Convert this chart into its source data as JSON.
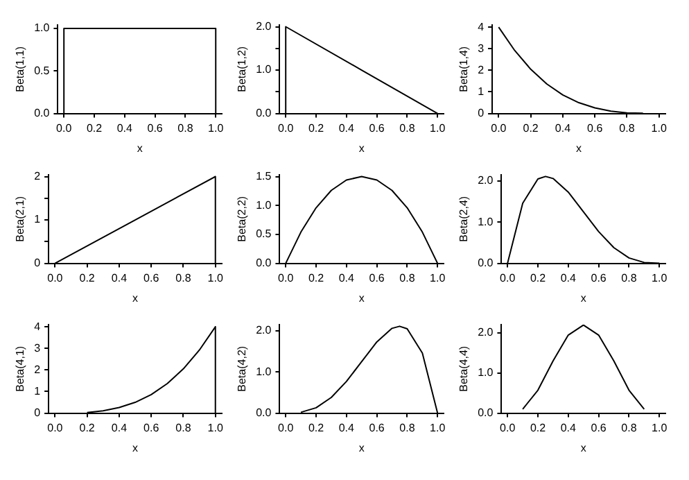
{
  "chart_data": [
    {
      "type": "line",
      "xlabel": "x",
      "ylabel": "Beta(1,1)",
      "xlim": [
        -0.04,
        1.04
      ],
      "xticks": [
        {
          "value": 0,
          "label": "0.0"
        },
        {
          "value": 0.2,
          "label": "0.2"
        },
        {
          "value": 0.4,
          "label": "0.4"
        },
        {
          "value": 0.6,
          "label": "0.6"
        },
        {
          "value": 0.8,
          "label": "0.8"
        },
        {
          "value": 1,
          "label": "1.0"
        }
      ],
      "ylim": [
        0,
        1.04
      ],
      "yticks": [
        {
          "value": 0,
          "label": "0.0"
        },
        {
          "value": 0.5,
          "label": "0.5"
        },
        {
          "value": 1,
          "label": "1.0"
        }
      ],
      "marker": "none",
      "series": [
        {
          "color": "#000000",
          "x": [
            0,
            0,
            0.5,
            1,
            1
          ],
          "values": [
            0,
            1,
            1,
            1,
            0
          ]
        }
      ]
    },
    {
      "type": "line",
      "xlabel": "x",
      "ylabel": "Beta(1,2)",
      "xlim": [
        -0.04,
        1.04
      ],
      "xticks": [
        {
          "value": 0,
          "label": "0.0"
        },
        {
          "value": 0.2,
          "label": "0.2"
        },
        {
          "value": 0.4,
          "label": "0.4"
        },
        {
          "value": 0.6,
          "label": "0.6"
        },
        {
          "value": 0.8,
          "label": "0.8"
        },
        {
          "value": 1,
          "label": "1.0"
        }
      ],
      "ylim": [
        0,
        2.04
      ],
      "yticks": [
        {
          "value": 0,
          "label": "0.0"
        },
        {
          "value": 0.5,
          "label": null
        },
        {
          "value": 1,
          "label": "1.0"
        },
        {
          "value": 1.5,
          "label": null
        },
        {
          "value": 2,
          "label": "2.0"
        }
      ],
      "marker": "none",
      "series": [
        {
          "color": "#000000",
          "x": [
            0,
            0,
            0.5,
            1
          ],
          "values": [
            0,
            2,
            1,
            0
          ]
        }
      ]
    },
    {
      "type": "line",
      "xlabel": "x",
      "ylabel": "Beta(1,4)",
      "xlim": [
        -0.04,
        1.04
      ],
      "xticks": [
        {
          "value": 0,
          "label": "0.0"
        },
        {
          "value": 0.2,
          "label": "0.2"
        },
        {
          "value": 0.4,
          "label": "0.4"
        },
        {
          "value": 0.6,
          "label": "0.6"
        },
        {
          "value": 0.8,
          "label": "0.8"
        },
        {
          "value": 1,
          "label": "1.0"
        }
      ],
      "ylim": [
        0,
        4.1
      ],
      "yticks": [
        0,
        1,
        2,
        3,
        4
      ],
      "marker": "none",
      "series": [
        {
          "color": "#000000",
          "x": [
            0,
            0.1,
            0.2,
            0.3,
            0.4,
            0.5,
            0.6,
            0.7,
            0.8,
            0.9
          ],
          "values": [
            4,
            2.92,
            2.05,
            1.37,
            0.86,
            0.5,
            0.26,
            0.11,
            0.03,
            0.01
          ]
        }
      ]
    },
    {
      "type": "line",
      "xlabel": "x",
      "ylabel": "Beta(2,1)",
      "xlim": [
        -0.04,
        1.04
      ],
      "xticks": [
        {
          "value": 0,
          "label": "0.0"
        },
        {
          "value": 0.2,
          "label": "0.2"
        },
        {
          "value": 0.4,
          "label": "0.4"
        },
        {
          "value": 0.6,
          "label": "0.6"
        },
        {
          "value": 0.8,
          "label": "0.8"
        },
        {
          "value": 1,
          "label": "1.0"
        }
      ],
      "ylim": [
        0,
        2.04
      ],
      "yticks": [
        {
          "value": 0,
          "label": "0"
        },
        {
          "value": 0.5,
          "label": null
        },
        {
          "value": 1,
          "label": "1"
        },
        {
          "value": 1.5,
          "label": null
        },
        {
          "value": 2,
          "label": "2"
        }
      ],
      "marker": "none",
      "series": [
        {
          "color": "#000000",
          "x": [
            0,
            0.5,
            1,
            1
          ],
          "values": [
            0,
            1,
            2,
            0
          ]
        }
      ]
    },
    {
      "type": "line",
      "xlabel": "x",
      "ylabel": "Beta(2,2)",
      "xlim": [
        -0.04,
        1.04
      ],
      "xticks": [
        {
          "value": 0,
          "label": "0.0"
        },
        {
          "value": 0.2,
          "label": "0.2"
        },
        {
          "value": 0.4,
          "label": "0.4"
        },
        {
          "value": 0.6,
          "label": "0.6"
        },
        {
          "value": 0.8,
          "label": "0.8"
        },
        {
          "value": 1,
          "label": "1.0"
        }
      ],
      "ylim": [
        0,
        1.53
      ],
      "yticks": [
        {
          "value": 0,
          "label": "0.0"
        },
        {
          "value": 0.5,
          "label": "0.5"
        },
        {
          "value": 1,
          "label": "1.0"
        },
        {
          "value": 1.5,
          "label": "1.5"
        }
      ],
      "marker": "none",
      "series": [
        {
          "color": "#000000",
          "x": [
            0,
            0.1,
            0.2,
            0.3,
            0.4,
            0.5,
            0.6,
            0.7,
            0.8,
            0.9,
            1
          ],
          "values": [
            0,
            0.54,
            0.96,
            1.26,
            1.44,
            1.5,
            1.44,
            1.26,
            0.96,
            0.54,
            0
          ]
        }
      ]
    },
    {
      "type": "line",
      "xlabel": "x",
      "ylabel": "Beta(2,4)",
      "xlim": [
        -0.04,
        1.04
      ],
      "xticks": [
        {
          "value": 0,
          "label": "0.0"
        },
        {
          "value": 0.2,
          "label": "0.2"
        },
        {
          "value": 0.4,
          "label": "0.4"
        },
        {
          "value": 0.6,
          "label": "0.6"
        },
        {
          "value": 0.8,
          "label": "0.8"
        },
        {
          "value": 1,
          "label": "1.0"
        }
      ],
      "ylim": [
        0,
        2.15
      ],
      "yticks": [
        {
          "value": 0,
          "label": "0.0"
        },
        {
          "value": 1,
          "label": "1.0"
        },
        {
          "value": 2,
          "label": "2.0"
        }
      ],
      "marker": "none",
      "series": [
        {
          "color": "#000000",
          "x": [
            0,
            0.1,
            0.2,
            0.25,
            0.3,
            0.4,
            0.5,
            0.6,
            0.7,
            0.8,
            0.9,
            1
          ],
          "values": [
            0,
            1.46,
            2.05,
            2.11,
            2.06,
            1.73,
            1.25,
            0.77,
            0.38,
            0.13,
            0.02,
            0
          ]
        }
      ]
    },
    {
      "type": "line",
      "xlabel": "x",
      "ylabel": "Beta(4,1)",
      "xlim": [
        -0.04,
        1.04
      ],
      "xticks": [
        {
          "value": 0,
          "label": "0.0"
        },
        {
          "value": 0.2,
          "label": "0.2"
        },
        {
          "value": 0.4,
          "label": "0.4"
        },
        {
          "value": 0.6,
          "label": "0.6"
        },
        {
          "value": 0.8,
          "label": "0.8"
        },
        {
          "value": 1,
          "label": "1.0"
        }
      ],
      "ylim": [
        0,
        4.1
      ],
      "yticks": [
        0,
        1,
        2,
        3,
        4
      ],
      "marker": "none",
      "series": [
        {
          "color": "#000000",
          "x": [
            0.2,
            0.3,
            0.4,
            0.5,
            0.6,
            0.7,
            0.8,
            0.9,
            1,
            1
          ],
          "values": [
            0.03,
            0.11,
            0.26,
            0.5,
            0.86,
            1.37,
            2.05,
            2.92,
            4,
            0
          ]
        }
      ]
    },
    {
      "type": "line",
      "xlabel": "x",
      "ylabel": "Beta(4,2)",
      "xlim": [
        -0.04,
        1.04
      ],
      "xticks": [
        {
          "value": 0,
          "label": "0.0"
        },
        {
          "value": 0.2,
          "label": "0.2"
        },
        {
          "value": 0.4,
          "label": "0.4"
        },
        {
          "value": 0.6,
          "label": "0.6"
        },
        {
          "value": 0.8,
          "label": "0.8"
        },
        {
          "value": 1,
          "label": "1.0"
        }
      ],
      "ylim": [
        0,
        2.15
      ],
      "yticks": [
        {
          "value": 0,
          "label": "0.0"
        },
        {
          "value": 1,
          "label": "1.0"
        },
        {
          "value": 2,
          "label": "2.0"
        }
      ],
      "marker": "none",
      "series": [
        {
          "color": "#000000",
          "x": [
            0.1,
            0.2,
            0.3,
            0.4,
            0.5,
            0.6,
            0.7,
            0.75,
            0.8,
            0.9,
            1
          ],
          "values": [
            0.02,
            0.13,
            0.38,
            0.77,
            1.25,
            1.73,
            2.06,
            2.11,
            2.05,
            1.46,
            0
          ]
        }
      ]
    },
    {
      "type": "line",
      "xlabel": "x",
      "ylabel": "Beta(4,4)",
      "xlim": [
        -0.04,
        1.04
      ],
      "xticks": [
        {
          "value": 0,
          "label": "0.0"
        },
        {
          "value": 0.2,
          "label": "0.2"
        },
        {
          "value": 0.4,
          "label": "0.4"
        },
        {
          "value": 0.6,
          "label": "0.6"
        },
        {
          "value": 0.8,
          "label": "0.8"
        },
        {
          "value": 1,
          "label": "1.0"
        }
      ],
      "ylim": [
        0,
        2.2
      ],
      "yticks": [
        {
          "value": 0,
          "label": "0.0"
        },
        {
          "value": 1,
          "label": "1.0"
        },
        {
          "value": 2,
          "label": "2.0"
        }
      ],
      "marker": "none",
      "series": [
        {
          "color": "#000000",
          "x": [
            0.1,
            0.2,
            0.3,
            0.4,
            0.5,
            0.6,
            0.7,
            0.8,
            0.9
          ],
          "values": [
            0.1,
            0.57,
            1.3,
            1.94,
            2.19,
            1.94,
            1.3,
            0.57,
            0.1
          ]
        }
      ]
    }
  ]
}
